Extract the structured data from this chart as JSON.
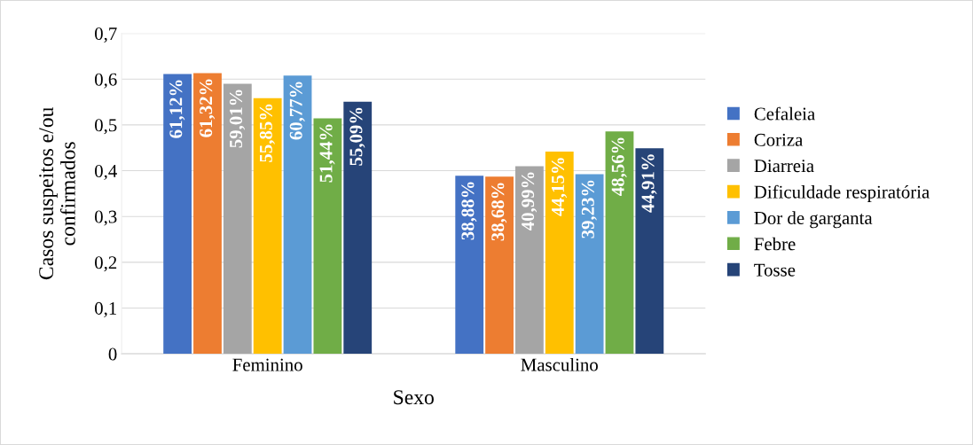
{
  "chart_data": {
    "type": "bar",
    "xlabel": "Sexo",
    "ylabel": "Casos suspeitos e/ou\nconfirmados",
    "categories": [
      "Feminino",
      "Masculino"
    ],
    "series": [
      {
        "name": "Cefaleia",
        "color": "#4472c4",
        "values": [
          0.6112,
          0.3888
        ],
        "value_labels": [
          "61,12%",
          "38,88%"
        ]
      },
      {
        "name": "Coriza",
        "color": "#ed7d31",
        "values": [
          0.6132,
          0.3868
        ],
        "value_labels": [
          "61,32%",
          "38,68%"
        ]
      },
      {
        "name": "Diarreia",
        "color": "#a5a5a5",
        "values": [
          0.5901,
          0.4099
        ],
        "value_labels": [
          "59,01%",
          "40,99%"
        ]
      },
      {
        "name": "Dificuldade respiratória",
        "color": "#ffc000",
        "values": [
          0.5585,
          0.4415
        ],
        "value_labels": [
          "55,85%",
          "44,15%"
        ]
      },
      {
        "name": "Dor de garganta",
        "color": "#5b9bd5",
        "values": [
          0.6077,
          0.3923
        ],
        "value_labels": [
          "60,77%",
          "39,23%"
        ]
      },
      {
        "name": "Febre",
        "color": "#70ad47",
        "values": [
          0.5144,
          0.4856
        ],
        "value_labels": [
          "51,44%",
          "48,56%"
        ]
      },
      {
        "name": "Tosse",
        "color": "#264478",
        "values": [
          0.5509,
          0.4491
        ],
        "value_labels": [
          "55,09%",
          "44,91%"
        ]
      }
    ],
    "ylim": [
      0,
      0.7
    ],
    "yticks": [
      0,
      {
        "value": 0.1,
        "label": "0,1"
      },
      {
        "value": 0.2,
        "label": "0,2"
      },
      {
        "value": 0.3,
        "label": "0,3"
      },
      {
        "value": 0.4,
        "label": "0,4"
      },
      {
        "value": 0.5,
        "label": "0,5"
      },
      {
        "value": 0.6,
        "label": "0,6"
      },
      {
        "value": 0.7,
        "label": "0,7"
      }
    ],
    "grid": "y",
    "legend": "right"
  }
}
